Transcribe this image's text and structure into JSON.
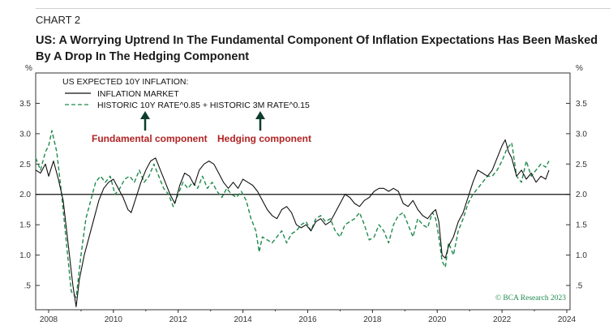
{
  "header": {
    "chart_number": "CHART 2",
    "title": "US: A Worrying Uptrend In The Fundamental Component Of Inflation Expectations Has Been Masked By A Drop In The Hedging Component"
  },
  "axes": {
    "left_unit": "%",
    "right_unit": "%"
  },
  "legend": {
    "title": "US EXPECTED 10Y INFLATION:",
    "items": [
      {
        "label": "INFLATION MARKET",
        "style": "solid",
        "color": "#111111"
      },
      {
        "label": "HISTORIC 10Y RATE^0.85 + HISTORIC 3M RATE^0.15",
        "style": "dashed",
        "color": "#1f8a4c"
      }
    ]
  },
  "annotations": {
    "fundamental": "Fundamental component",
    "hedging": "Hedging component",
    "color": "#b22222"
  },
  "credit": "© BCA Research 2023",
  "chart_data": {
    "type": "line",
    "xlim": [
      2007.6,
      2024.1
    ],
    "ylim": [
      0.1,
      4.0
    ],
    "x_ticks": [
      2008,
      2010,
      2012,
      2014,
      2016,
      2018,
      2020,
      2022,
      2024
    ],
    "y_ticks": [
      0.5,
      1.0,
      1.5,
      2.0,
      2.5,
      3.0,
      3.5
    ],
    "y_tick_labels": [
      ".5",
      "1.0",
      "1.5",
      "2.0",
      "2.5",
      "3.0",
      "3.5"
    ],
    "reference_line": 2.0,
    "series": [
      {
        "name": "INFLATION MARKET",
        "style": "solid",
        "color": "#111111",
        "points": [
          [
            2007.6,
            2.4
          ],
          [
            2007.75,
            2.35
          ],
          [
            2007.9,
            2.5
          ],
          [
            2008.0,
            2.3
          ],
          [
            2008.15,
            2.55
          ],
          [
            2008.3,
            2.25
          ],
          [
            2008.45,
            1.9
          ],
          [
            2008.6,
            1.2
          ],
          [
            2008.75,
            0.5
          ],
          [
            2008.85,
            0.15
          ],
          [
            2008.95,
            0.6
          ],
          [
            2009.1,
            1.0
          ],
          [
            2009.25,
            1.3
          ],
          [
            2009.4,
            1.6
          ],
          [
            2009.55,
            1.9
          ],
          [
            2009.7,
            2.1
          ],
          [
            2009.85,
            2.2
          ],
          [
            2010.0,
            2.25
          ],
          [
            2010.15,
            2.1
          ],
          [
            2010.3,
            1.95
          ],
          [
            2010.45,
            1.75
          ],
          [
            2010.55,
            1.7
          ],
          [
            2010.7,
            1.95
          ],
          [
            2010.85,
            2.2
          ],
          [
            2011.0,
            2.4
          ],
          [
            2011.15,
            2.55
          ],
          [
            2011.3,
            2.6
          ],
          [
            2011.45,
            2.4
          ],
          [
            2011.6,
            2.2
          ],
          [
            2011.75,
            2.0
          ],
          [
            2011.9,
            1.85
          ],
          [
            2012.05,
            2.15
          ],
          [
            2012.2,
            2.35
          ],
          [
            2012.35,
            2.3
          ],
          [
            2012.5,
            2.15
          ],
          [
            2012.65,
            2.4
          ],
          [
            2012.8,
            2.5
          ],
          [
            2012.95,
            2.55
          ],
          [
            2013.1,
            2.5
          ],
          [
            2013.25,
            2.35
          ],
          [
            2013.4,
            2.2
          ],
          [
            2013.55,
            2.1
          ],
          [
            2013.7,
            2.2
          ],
          [
            2013.85,
            2.1
          ],
          [
            2014.0,
            2.25
          ],
          [
            2014.15,
            2.2
          ],
          [
            2014.3,
            2.15
          ],
          [
            2014.45,
            2.05
          ],
          [
            2014.6,
            1.9
          ],
          [
            2014.75,
            1.75
          ],
          [
            2014.9,
            1.65
          ],
          [
            2015.05,
            1.6
          ],
          [
            2015.2,
            1.75
          ],
          [
            2015.35,
            1.8
          ],
          [
            2015.5,
            1.7
          ],
          [
            2015.65,
            1.5
          ],
          [
            2015.8,
            1.45
          ],
          [
            2015.95,
            1.5
          ],
          [
            2016.1,
            1.4
          ],
          [
            2016.25,
            1.55
          ],
          [
            2016.4,
            1.6
          ],
          [
            2016.55,
            1.5
          ],
          [
            2016.7,
            1.55
          ],
          [
            2016.85,
            1.7
          ],
          [
            2017.0,
            1.85
          ],
          [
            2017.15,
            2.0
          ],
          [
            2017.3,
            1.95
          ],
          [
            2017.45,
            1.85
          ],
          [
            2017.6,
            1.8
          ],
          [
            2017.75,
            1.9
          ],
          [
            2017.9,
            1.95
          ],
          [
            2018.05,
            2.05
          ],
          [
            2018.2,
            2.1
          ],
          [
            2018.35,
            2.1
          ],
          [
            2018.5,
            2.05
          ],
          [
            2018.65,
            2.1
          ],
          [
            2018.8,
            2.05
          ],
          [
            2018.95,
            1.85
          ],
          [
            2019.1,
            1.8
          ],
          [
            2019.25,
            1.9
          ],
          [
            2019.4,
            1.75
          ],
          [
            2019.55,
            1.65
          ],
          [
            2019.7,
            1.6
          ],
          [
            2019.85,
            1.7
          ],
          [
            2019.95,
            1.75
          ],
          [
            2020.05,
            1.55
          ],
          [
            2020.15,
            1.0
          ],
          [
            2020.25,
            0.95
          ],
          [
            2020.35,
            1.15
          ],
          [
            2020.5,
            1.3
          ],
          [
            2020.65,
            1.55
          ],
          [
            2020.8,
            1.7
          ],
          [
            2020.95,
            1.95
          ],
          [
            2021.1,
            2.2
          ],
          [
            2021.25,
            2.4
          ],
          [
            2021.4,
            2.35
          ],
          [
            2021.55,
            2.3
          ],
          [
            2021.7,
            2.4
          ],
          [
            2021.85,
            2.6
          ],
          [
            2022.0,
            2.8
          ],
          [
            2022.1,
            2.9
          ],
          [
            2022.2,
            2.7
          ],
          [
            2022.3,
            2.6
          ],
          [
            2022.45,
            2.3
          ],
          [
            2022.6,
            2.4
          ],
          [
            2022.75,
            2.25
          ],
          [
            2022.9,
            2.35
          ],
          [
            2023.05,
            2.2
          ],
          [
            2023.2,
            2.3
          ],
          [
            2023.35,
            2.25
          ],
          [
            2023.45,
            2.4
          ]
        ]
      },
      {
        "name": "HISTORIC 10Y RATE^0.85 + HISTORIC 3M RATE^0.15",
        "style": "dashed",
        "color": "#1f8a4c",
        "points": [
          [
            2007.6,
            2.6
          ],
          [
            2007.75,
            2.4
          ],
          [
            2007.9,
            2.7
          ],
          [
            2008.0,
            2.8
          ],
          [
            2008.1,
            3.05
          ],
          [
            2008.25,
            2.7
          ],
          [
            2008.4,
            2.0
          ],
          [
            2008.55,
            1.2
          ],
          [
            2008.7,
            0.4
          ],
          [
            2008.85,
            0.3
          ],
          [
            2009.0,
            1.0
          ],
          [
            2009.15,
            1.6
          ],
          [
            2009.3,
            1.9
          ],
          [
            2009.45,
            2.2
          ],
          [
            2009.6,
            2.3
          ],
          [
            2009.75,
            2.2
          ],
          [
            2009.9,
            2.3
          ],
          [
            2010.05,
            2.0
          ],
          [
            2010.2,
            2.1
          ],
          [
            2010.35,
            2.25
          ],
          [
            2010.5,
            2.3
          ],
          [
            2010.65,
            2.2
          ],
          [
            2010.8,
            2.4
          ],
          [
            2010.95,
            2.2
          ],
          [
            2011.1,
            2.3
          ],
          [
            2011.25,
            2.5
          ],
          [
            2011.4,
            2.3
          ],
          [
            2011.55,
            2.1
          ],
          [
            2011.7,
            2.0
          ],
          [
            2011.85,
            1.8
          ],
          [
            2012.0,
            2.0
          ],
          [
            2012.15,
            2.2
          ],
          [
            2012.3,
            2.1
          ],
          [
            2012.45,
            2.2
          ],
          [
            2012.6,
            2.1
          ],
          [
            2012.75,
            2.3
          ],
          [
            2012.9,
            2.1
          ],
          [
            2013.05,
            2.2
          ],
          [
            2013.2,
            2.05
          ],
          [
            2013.35,
            1.95
          ],
          [
            2013.5,
            2.1
          ],
          [
            2013.65,
            2.0
          ],
          [
            2013.8,
            1.95
          ],
          [
            2013.95,
            2.05
          ],
          [
            2014.1,
            1.9
          ],
          [
            2014.25,
            1.6
          ],
          [
            2014.4,
            1.4
          ],
          [
            2014.5,
            1.05
          ],
          [
            2014.6,
            1.3
          ],
          [
            2014.75,
            1.25
          ],
          [
            2014.9,
            1.2
          ],
          [
            2015.05,
            1.3
          ],
          [
            2015.2,
            1.4
          ],
          [
            2015.35,
            1.2
          ],
          [
            2015.5,
            1.35
          ],
          [
            2015.65,
            1.4
          ],
          [
            2015.8,
            1.5
          ],
          [
            2015.95,
            1.55
          ],
          [
            2016.1,
            1.4
          ],
          [
            2016.25,
            1.6
          ],
          [
            2016.4,
            1.65
          ],
          [
            2016.55,
            1.55
          ],
          [
            2016.7,
            1.6
          ],
          [
            2016.85,
            1.4
          ],
          [
            2017.0,
            1.3
          ],
          [
            2017.15,
            1.5
          ],
          [
            2017.3,
            1.55
          ],
          [
            2017.45,
            1.6
          ],
          [
            2017.6,
            1.7
          ],
          [
            2017.75,
            1.5
          ],
          [
            2017.9,
            1.25
          ],
          [
            2018.05,
            1.3
          ],
          [
            2018.2,
            1.5
          ],
          [
            2018.35,
            1.4
          ],
          [
            2018.5,
            1.2
          ],
          [
            2018.65,
            1.5
          ],
          [
            2018.8,
            1.65
          ],
          [
            2018.95,
            1.7
          ],
          [
            2019.1,
            1.5
          ],
          [
            2019.25,
            1.3
          ],
          [
            2019.4,
            1.6
          ],
          [
            2019.55,
            1.5
          ],
          [
            2019.7,
            1.45
          ],
          [
            2019.85,
            1.7
          ],
          [
            2019.95,
            1.6
          ],
          [
            2020.05,
            1.3
          ],
          [
            2020.15,
            0.9
          ],
          [
            2020.25,
            0.8
          ],
          [
            2020.35,
            1.2
          ],
          [
            2020.5,
            1.0
          ],
          [
            2020.65,
            1.4
          ],
          [
            2020.8,
            1.6
          ],
          [
            2020.95,
            1.85
          ],
          [
            2021.1,
            2.0
          ],
          [
            2021.25,
            2.1
          ],
          [
            2021.4,
            2.2
          ],
          [
            2021.55,
            2.3
          ],
          [
            2021.7,
            2.3
          ],
          [
            2021.85,
            2.4
          ],
          [
            2022.0,
            2.55
          ],
          [
            2022.15,
            2.75
          ],
          [
            2022.3,
            2.85
          ],
          [
            2022.45,
            2.3
          ],
          [
            2022.6,
            2.2
          ],
          [
            2022.75,
            2.55
          ],
          [
            2022.9,
            2.3
          ],
          [
            2023.05,
            2.4
          ],
          [
            2023.2,
            2.5
          ],
          [
            2023.35,
            2.45
          ],
          [
            2023.45,
            2.55
          ]
        ]
      }
    ]
  }
}
